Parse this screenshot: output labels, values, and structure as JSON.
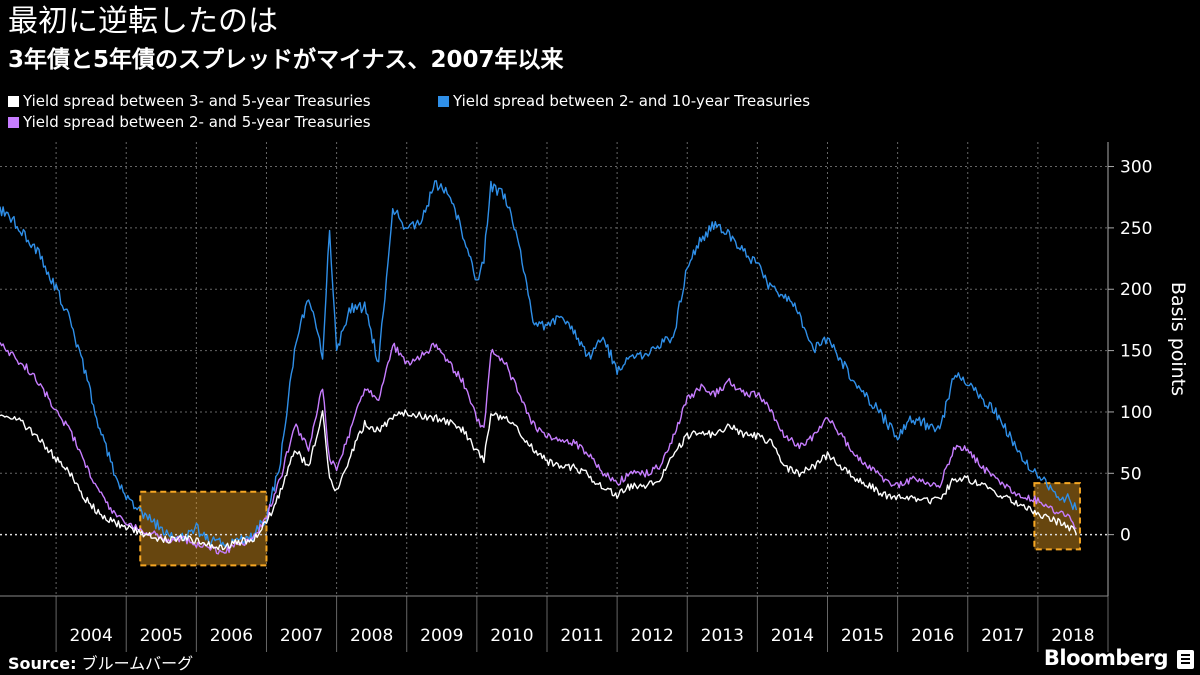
{
  "header": {
    "title": "最初に逆転したのは",
    "subtitle": "3年債と5年債のスプレッドがマイナス、2007年以来"
  },
  "footer": {
    "source_label": "Source:",
    "source_text": "ブルームバーグ",
    "brand": "Bloomberg"
  },
  "colors": {
    "background": "#000000",
    "series_3y5y": "#ffffff",
    "series_2y10y": "#2f8fe8",
    "series_2y5y": "#c77dff",
    "highlight": "#f5a623",
    "grid": "#666666"
  },
  "chart_data": {
    "type": "line",
    "ylabel": "Basis points",
    "ylim": [
      -50,
      320
    ],
    "yticks": [
      0,
      50,
      100,
      150,
      200,
      250,
      300
    ],
    "xlim": [
      2003.2,
      2019.0
    ],
    "year_labels": [
      "2004",
      "2005",
      "2006",
      "2007",
      "2008",
      "2009",
      "2010",
      "2011",
      "2012",
      "2013",
      "2014",
      "2015",
      "2016",
      "2017",
      "2018"
    ],
    "grid": true,
    "legend_position": "top-left",
    "zero_line": "dotted",
    "highlight_periods": [
      {
        "x0": 2005.2,
        "x1": 2007.0,
        "y0": -25,
        "y1": 35
      },
      {
        "x0": 2017.95,
        "x1": 2018.6,
        "y0": -12,
        "y1": 42
      }
    ],
    "series": [
      {
        "name": "Yield spread between 3- and 5-year Treasuries",
        "color": "#ffffff",
        "points": [
          [
            2003.2,
            100
          ],
          [
            2003.5,
            92
          ],
          [
            2003.8,
            75
          ],
          [
            2004.0,
            62
          ],
          [
            2004.2,
            50
          ],
          [
            2004.4,
            30
          ],
          [
            2004.6,
            18
          ],
          [
            2004.8,
            10
          ],
          [
            2005.0,
            6
          ],
          [
            2005.2,
            2
          ],
          [
            2005.4,
            -2
          ],
          [
            2005.6,
            -4
          ],
          [
            2005.8,
            -2
          ],
          [
            2006.0,
            -5
          ],
          [
            2006.2,
            -8
          ],
          [
            2006.4,
            -10
          ],
          [
            2006.6,
            -6
          ],
          [
            2006.8,
            -4
          ],
          [
            2007.0,
            10
          ],
          [
            2007.2,
            35
          ],
          [
            2007.4,
            70
          ],
          [
            2007.6,
            55
          ],
          [
            2007.8,
            100
          ],
          [
            2007.9,
            45
          ],
          [
            2008.0,
            35
          ],
          [
            2008.2,
            65
          ],
          [
            2008.4,
            90
          ],
          [
            2008.6,
            85
          ],
          [
            2008.8,
            95
          ],
          [
            2009.0,
            100
          ],
          [
            2009.2,
            97
          ],
          [
            2009.4,
            95
          ],
          [
            2009.6,
            92
          ],
          [
            2009.8,
            85
          ],
          [
            2010.0,
            68
          ],
          [
            2010.1,
            60
          ],
          [
            2010.2,
            98
          ],
          [
            2010.4,
            95
          ],
          [
            2010.6,
            85
          ],
          [
            2010.8,
            70
          ],
          [
            2011.0,
            60
          ],
          [
            2011.2,
            55
          ],
          [
            2011.4,
            55
          ],
          [
            2011.6,
            48
          ],
          [
            2011.8,
            38
          ],
          [
            2012.0,
            32
          ],
          [
            2012.2,
            40
          ],
          [
            2012.4,
            40
          ],
          [
            2012.6,
            45
          ],
          [
            2012.8,
            65
          ],
          [
            2013.0,
            80
          ],
          [
            2013.2,
            85
          ],
          [
            2013.4,
            80
          ],
          [
            2013.6,
            90
          ],
          [
            2013.8,
            82
          ],
          [
            2014.0,
            80
          ],
          [
            2014.2,
            75
          ],
          [
            2014.4,
            55
          ],
          [
            2014.6,
            50
          ],
          [
            2014.8,
            55
          ],
          [
            2015.0,
            65
          ],
          [
            2015.2,
            55
          ],
          [
            2015.4,
            45
          ],
          [
            2015.6,
            40
          ],
          [
            2015.8,
            32
          ],
          [
            2016.0,
            30
          ],
          [
            2016.2,
            30
          ],
          [
            2016.4,
            28
          ],
          [
            2016.6,
            28
          ],
          [
            2016.8,
            45
          ],
          [
            2017.0,
            45
          ],
          [
            2017.2,
            40
          ],
          [
            2017.4,
            35
          ],
          [
            2017.6,
            28
          ],
          [
            2017.8,
            23
          ],
          [
            2018.0,
            18
          ],
          [
            2018.2,
            12
          ],
          [
            2018.4,
            8
          ],
          [
            2018.5,
            4
          ],
          [
            2018.55,
            0
          ]
        ]
      },
      {
        "name": "Yield spread between 2- and 10-year Treasuries",
        "color": "#2f8fe8",
        "points": [
          [
            2003.2,
            265
          ],
          [
            2003.4,
            255
          ],
          [
            2003.6,
            240
          ],
          [
            2003.8,
            225
          ],
          [
            2004.0,
            200
          ],
          [
            2004.2,
            175
          ],
          [
            2004.4,
            135
          ],
          [
            2004.6,
            90
          ],
          [
            2004.8,
            55
          ],
          [
            2005.0,
            30
          ],
          [
            2005.2,
            20
          ],
          [
            2005.4,
            10
          ],
          [
            2005.6,
            0
          ],
          [
            2005.8,
            -2
          ],
          [
            2006.0,
            5
          ],
          [
            2006.2,
            -5
          ],
          [
            2006.4,
            -8
          ],
          [
            2006.6,
            -5
          ],
          [
            2006.8,
            -2
          ],
          [
            2007.0,
            15
          ],
          [
            2007.2,
            60
          ],
          [
            2007.4,
            150
          ],
          [
            2007.6,
            195
          ],
          [
            2007.8,
            145
          ],
          [
            2007.9,
            250
          ],
          [
            2008.0,
            150
          ],
          [
            2008.2,
            185
          ],
          [
            2008.4,
            185
          ],
          [
            2008.6,
            140
          ],
          [
            2008.8,
            265
          ],
          [
            2009.0,
            250
          ],
          [
            2009.2,
            255
          ],
          [
            2009.4,
            285
          ],
          [
            2009.6,
            280
          ],
          [
            2009.8,
            245
          ],
          [
            2010.0,
            205
          ],
          [
            2010.1,
            225
          ],
          [
            2010.2,
            285
          ],
          [
            2010.4,
            275
          ],
          [
            2010.6,
            240
          ],
          [
            2010.8,
            175
          ],
          [
            2011.0,
            170
          ],
          [
            2011.2,
            180
          ],
          [
            2011.4,
            165
          ],
          [
            2011.6,
            145
          ],
          [
            2011.8,
            160
          ],
          [
            2012.0,
            135
          ],
          [
            2012.2,
            145
          ],
          [
            2012.4,
            145
          ],
          [
            2012.6,
            155
          ],
          [
            2012.8,
            160
          ],
          [
            2013.0,
            220
          ],
          [
            2013.2,
            240
          ],
          [
            2013.4,
            255
          ],
          [
            2013.6,
            245
          ],
          [
            2013.8,
            230
          ],
          [
            2014.0,
            220
          ],
          [
            2014.2,
            200
          ],
          [
            2014.4,
            195
          ],
          [
            2014.6,
            180
          ],
          [
            2014.8,
            150
          ],
          [
            2015.0,
            160
          ],
          [
            2015.2,
            140
          ],
          [
            2015.4,
            125
          ],
          [
            2015.6,
            110
          ],
          [
            2015.8,
            95
          ],
          [
            2016.0,
            80
          ],
          [
            2016.2,
            95
          ],
          [
            2016.4,
            90
          ],
          [
            2016.6,
            85
          ],
          [
            2016.8,
            130
          ],
          [
            2017.0,
            125
          ],
          [
            2017.2,
            110
          ],
          [
            2017.4,
            100
          ],
          [
            2017.6,
            80
          ],
          [
            2017.8,
            60
          ],
          [
            2018.0,
            50
          ],
          [
            2018.2,
            35
          ],
          [
            2018.4,
            30
          ],
          [
            2018.5,
            25
          ],
          [
            2018.55,
            20
          ]
        ]
      },
      {
        "name": "Yield spread between 2- and 5-year Treasuries",
        "color": "#c77dff",
        "points": [
          [
            2003.2,
            155
          ],
          [
            2003.4,
            145
          ],
          [
            2003.6,
            135
          ],
          [
            2003.8,
            120
          ],
          [
            2004.0,
            100
          ],
          [
            2004.2,
            85
          ],
          [
            2004.4,
            60
          ],
          [
            2004.6,
            35
          ],
          [
            2004.8,
            20
          ],
          [
            2005.0,
            10
          ],
          [
            2005.2,
            5
          ],
          [
            2005.4,
            0
          ],
          [
            2005.6,
            -5
          ],
          [
            2005.8,
            -3
          ],
          [
            2006.0,
            -8
          ],
          [
            2006.2,
            -12
          ],
          [
            2006.4,
            -14
          ],
          [
            2006.6,
            -8
          ],
          [
            2006.8,
            -5
          ],
          [
            2007.0,
            15
          ],
          [
            2007.2,
            45
          ],
          [
            2007.4,
            90
          ],
          [
            2007.6,
            70
          ],
          [
            2007.8,
            120
          ],
          [
            2007.9,
            60
          ],
          [
            2008.0,
            55
          ],
          [
            2008.2,
            85
          ],
          [
            2008.4,
            120
          ],
          [
            2008.6,
            110
          ],
          [
            2008.8,
            155
          ],
          [
            2009.0,
            140
          ],
          [
            2009.2,
            145
          ],
          [
            2009.4,
            155
          ],
          [
            2009.6,
            140
          ],
          [
            2009.8,
            125
          ],
          [
            2010.0,
            95
          ],
          [
            2010.1,
            85
          ],
          [
            2010.2,
            150
          ],
          [
            2010.4,
            140
          ],
          [
            2010.6,
            115
          ],
          [
            2010.8,
            90
          ],
          [
            2011.0,
            80
          ],
          [
            2011.2,
            75
          ],
          [
            2011.4,
            75
          ],
          [
            2011.6,
            65
          ],
          [
            2011.8,
            50
          ],
          [
            2012.0,
            42
          ],
          [
            2012.2,
            50
          ],
          [
            2012.4,
            50
          ],
          [
            2012.6,
            55
          ],
          [
            2012.8,
            80
          ],
          [
            2013.0,
            110
          ],
          [
            2013.2,
            120
          ],
          [
            2013.4,
            115
          ],
          [
            2013.6,
            125
          ],
          [
            2013.8,
            115
          ],
          [
            2014.0,
            115
          ],
          [
            2014.2,
            100
          ],
          [
            2014.4,
            80
          ],
          [
            2014.6,
            72
          ],
          [
            2014.8,
            80
          ],
          [
            2015.0,
            95
          ],
          [
            2015.2,
            80
          ],
          [
            2015.4,
            65
          ],
          [
            2015.6,
            55
          ],
          [
            2015.8,
            45
          ],
          [
            2016.0,
            40
          ],
          [
            2016.2,
            45
          ],
          [
            2016.4,
            42
          ],
          [
            2016.6,
            40
          ],
          [
            2016.8,
            70
          ],
          [
            2017.0,
            70
          ],
          [
            2017.2,
            55
          ],
          [
            2017.4,
            45
          ],
          [
            2017.6,
            38
          ],
          [
            2017.8,
            30
          ],
          [
            2018.0,
            28
          ],
          [
            2018.2,
            20
          ],
          [
            2018.4,
            15
          ],
          [
            2018.5,
            10
          ],
          [
            2018.55,
            5
          ]
        ]
      }
    ]
  }
}
